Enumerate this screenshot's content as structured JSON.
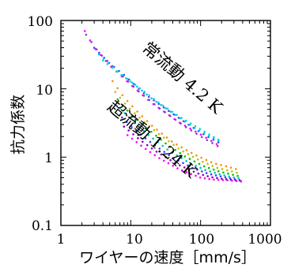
{
  "chart_data": {
    "type": "scatter",
    "title": "",
    "xlabel": "ワイヤーの速度［mm/s］",
    "ylabel": "抗力係数",
    "xscale": "log",
    "yscale": "log",
    "xlim": [
      1,
      1000
    ],
    "ylim": [
      0.1,
      100
    ],
    "xticks": [
      "1",
      "10",
      "100",
      "1000"
    ],
    "yticks": [
      "100",
      "10",
      "1",
      "0.1"
    ],
    "grid": false,
    "legend": "none",
    "annotations": [
      {
        "text": "常流動 4.2 K"
      },
      {
        "text": "超流動 1.24 K"
      }
    ],
    "series": [
      {
        "color": "#ff00ff",
        "group": "normal",
        "x": [
          2.2,
          3,
          5,
          10,
          20,
          50,
          100,
          170
        ],
        "y": [
          70,
          40,
          22,
          11.5,
          6.2,
          3.2,
          2.15,
          1.55
        ]
      },
      {
        "color": "#7f3fbf",
        "group": "normal",
        "x": [
          2.3,
          3.5,
          6,
          12,
          25,
          60,
          110,
          175
        ],
        "y": [
          62,
          34,
          19.5,
          9.8,
          5.3,
          2.8,
          1.9,
          1.45
        ]
      },
      {
        "color": "#3f3fff",
        "group": "normal",
        "x": [
          3,
          5,
          8,
          15,
          30,
          70,
          120,
          180
        ],
        "y": [
          40,
          23.5,
          16,
          8.8,
          5.3,
          2.9,
          2.05,
          1.65
        ]
      },
      {
        "color": "#00bfff",
        "group": "normal",
        "x": [
          3.5,
          6,
          10,
          20,
          40,
          80,
          130,
          180
        ],
        "y": [
          32,
          19.5,
          12.8,
          7.2,
          4.4,
          2.7,
          2.05,
          1.75
        ]
      },
      {
        "color": "#00dfbf",
        "group": "normal",
        "x": [
          4,
          7,
          12,
          25,
          50,
          100,
          150,
          180
        ],
        "y": [
          26,
          16.5,
          11.2,
          6.3,
          3.9,
          2.55,
          2,
          1.8
        ]
      },
      {
        "color": "#ff8c00",
        "group": "superfluid",
        "x": [
          5.5,
          8,
          12,
          20,
          40,
          80,
          150,
          250,
          320
        ],
        "y": [
          13,
          7.5,
          4.8,
          2.9,
          1.65,
          1.1,
          0.82,
          0.72,
          0.67
        ]
      },
      {
        "color": "#bfbf00",
        "group": "superfluid",
        "x": [
          6,
          9,
          14,
          25,
          50,
          100,
          170,
          260,
          330
        ],
        "y": [
          9,
          5.5,
          3.6,
          2.2,
          1.3,
          0.88,
          0.7,
          0.63,
          0.59
        ]
      },
      {
        "color": "#00bf00",
        "group": "superfluid",
        "x": [
          6.5,
          10,
          16,
          30,
          60,
          110,
          180,
          270,
          340
        ],
        "y": [
          7,
          4.2,
          2.8,
          1.65,
          1.02,
          0.74,
          0.62,
          0.56,
          0.53
        ]
      },
      {
        "color": "#00bfbf",
        "group": "superfluid",
        "x": [
          7,
          11,
          18,
          35,
          70,
          120,
          190,
          280,
          350
        ],
        "y": [
          5.2,
          3.2,
          2.1,
          1.25,
          0.82,
          0.64,
          0.56,
          0.51,
          0.49
        ]
      },
      {
        "color": "#3f3fff",
        "group": "superfluid",
        "x": [
          7.5,
          12,
          20,
          40,
          80,
          130,
          200,
          290,
          360
        ],
        "y": [
          3.8,
          2.4,
          1.6,
          0.98,
          0.68,
          0.57,
          0.52,
          0.48,
          0.46
        ]
      },
      {
        "color": "#7f00bf",
        "group": "superfluid",
        "x": [
          8,
          13,
          22,
          45,
          90,
          140,
          210,
          300,
          370
        ],
        "y": [
          2.8,
          1.85,
          1.25,
          0.8,
          0.58,
          0.51,
          0.48,
          0.46,
          0.45
        ]
      },
      {
        "color": "#ff00ff",
        "group": "superfluid",
        "x": [
          9,
          15,
          25,
          50,
          100,
          150,
          220,
          310,
          380
        ],
        "y": [
          2.1,
          1.4,
          0.98,
          0.66,
          0.5,
          0.47,
          0.46,
          0.45,
          0.44
        ]
      }
    ]
  }
}
